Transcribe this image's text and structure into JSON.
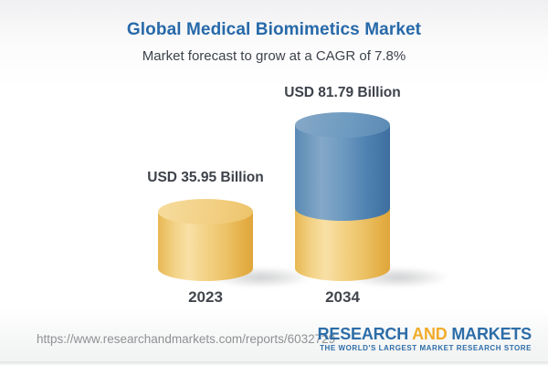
{
  "header": {
    "title": "Global Medical Biomimetics Market",
    "subtitle": "Market forecast to grow at a CAGR of 7.8%"
  },
  "chart_data": {
    "type": "bar",
    "variant": "3d-cylinder",
    "title": "Global Medical Biomimetics Market",
    "subtitle": "Market forecast to grow at a CAGR of 7.8%",
    "cagr_percent": 7.8,
    "unit": "USD Billion",
    "categories": [
      "2023",
      "2034"
    ],
    "values": [
      35.95,
      81.79
    ],
    "value_labels": [
      "USD 35.95 Billion",
      "USD 81.79 Billion"
    ],
    "bars": [
      {
        "category": "2023",
        "value": 35.95,
        "label": "USD 35.95 Billion",
        "segments": [
          {
            "name": "current-market",
            "color": "#f0c768"
          }
        ]
      },
      {
        "category": "2034",
        "value": 81.79,
        "label": "USD 81.79 Billion",
        "segments": [
          {
            "name": "base-market",
            "color": "#f0c768"
          },
          {
            "name": "forecast-growth",
            "color": "#5585b4"
          }
        ]
      }
    ],
    "legend": "none",
    "grid": false,
    "axes": "none"
  },
  "footer": {
    "url": "https://www.researchandmarkets.com/reports/6032729",
    "brand": {
      "word1": "RESEARCH",
      "word2": "AND",
      "word3": "MARKETS",
      "tagline": "THE WORLD'S LARGEST MARKET RESEARCH STORE"
    }
  },
  "colors": {
    "title_blue": "#2769a9",
    "text_dark": "#42464d",
    "bar_yellow": "#f0c768",
    "bar_blue": "#5585b4",
    "logo_blue": "#2d6da8",
    "logo_orange": "#f0ac29",
    "url_gray": "#8f9193"
  }
}
